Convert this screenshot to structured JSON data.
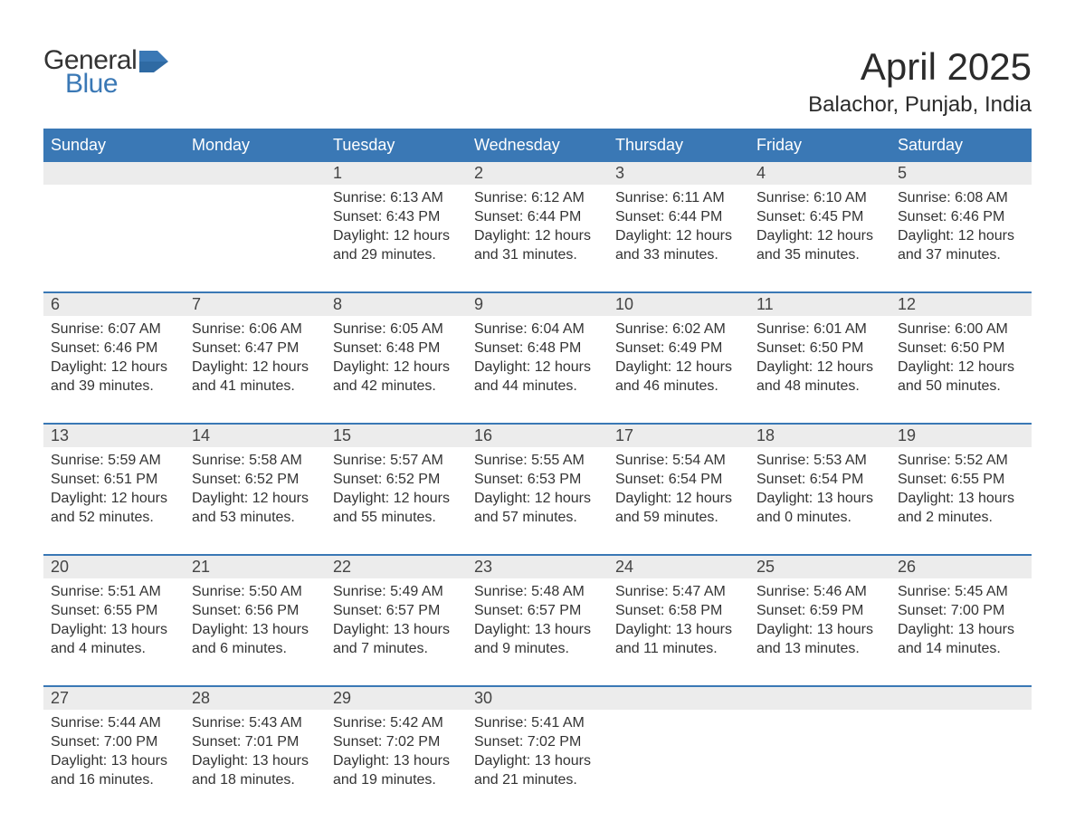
{
  "logo": {
    "word1": "General",
    "word2": "Blue"
  },
  "title": "April 2025",
  "location": "Balachor, Punjab, India",
  "colors": {
    "header_bg": "#3a78b5",
    "header_text": "#ffffff",
    "band_bg": "#ececec",
    "week_border": "#3a78b5",
    "body_text": "#333333",
    "logo_blue": "#3a78b5",
    "page_bg": "#ffffff"
  },
  "typography": {
    "month_title_fontsize": 42,
    "location_fontsize": 24,
    "dow_fontsize": 18,
    "daynum_fontsize": 18,
    "body_fontsize": 16,
    "logo_fontsize": 30
  },
  "days_of_week": [
    "Sunday",
    "Monday",
    "Tuesday",
    "Wednesday",
    "Thursday",
    "Friday",
    "Saturday"
  ],
  "weeks": [
    [
      null,
      null,
      {
        "n": "1",
        "sr": "Sunrise: 6:13 AM",
        "ss": "Sunset: 6:43 PM",
        "d1": "Daylight: 12 hours",
        "d2": "and 29 minutes."
      },
      {
        "n": "2",
        "sr": "Sunrise: 6:12 AM",
        "ss": "Sunset: 6:44 PM",
        "d1": "Daylight: 12 hours",
        "d2": "and 31 minutes."
      },
      {
        "n": "3",
        "sr": "Sunrise: 6:11 AM",
        "ss": "Sunset: 6:44 PM",
        "d1": "Daylight: 12 hours",
        "d2": "and 33 minutes."
      },
      {
        "n": "4",
        "sr": "Sunrise: 6:10 AM",
        "ss": "Sunset: 6:45 PM",
        "d1": "Daylight: 12 hours",
        "d2": "and 35 minutes."
      },
      {
        "n": "5",
        "sr": "Sunrise: 6:08 AM",
        "ss": "Sunset: 6:46 PM",
        "d1": "Daylight: 12 hours",
        "d2": "and 37 minutes."
      }
    ],
    [
      {
        "n": "6",
        "sr": "Sunrise: 6:07 AM",
        "ss": "Sunset: 6:46 PM",
        "d1": "Daylight: 12 hours",
        "d2": "and 39 minutes."
      },
      {
        "n": "7",
        "sr": "Sunrise: 6:06 AM",
        "ss": "Sunset: 6:47 PM",
        "d1": "Daylight: 12 hours",
        "d2": "and 41 minutes."
      },
      {
        "n": "8",
        "sr": "Sunrise: 6:05 AM",
        "ss": "Sunset: 6:48 PM",
        "d1": "Daylight: 12 hours",
        "d2": "and 42 minutes."
      },
      {
        "n": "9",
        "sr": "Sunrise: 6:04 AM",
        "ss": "Sunset: 6:48 PM",
        "d1": "Daylight: 12 hours",
        "d2": "and 44 minutes."
      },
      {
        "n": "10",
        "sr": "Sunrise: 6:02 AM",
        "ss": "Sunset: 6:49 PM",
        "d1": "Daylight: 12 hours",
        "d2": "and 46 minutes."
      },
      {
        "n": "11",
        "sr": "Sunrise: 6:01 AM",
        "ss": "Sunset: 6:50 PM",
        "d1": "Daylight: 12 hours",
        "d2": "and 48 minutes."
      },
      {
        "n": "12",
        "sr": "Sunrise: 6:00 AM",
        "ss": "Sunset: 6:50 PM",
        "d1": "Daylight: 12 hours",
        "d2": "and 50 minutes."
      }
    ],
    [
      {
        "n": "13",
        "sr": "Sunrise: 5:59 AM",
        "ss": "Sunset: 6:51 PM",
        "d1": "Daylight: 12 hours",
        "d2": "and 52 minutes."
      },
      {
        "n": "14",
        "sr": "Sunrise: 5:58 AM",
        "ss": "Sunset: 6:52 PM",
        "d1": "Daylight: 12 hours",
        "d2": "and 53 minutes."
      },
      {
        "n": "15",
        "sr": "Sunrise: 5:57 AM",
        "ss": "Sunset: 6:52 PM",
        "d1": "Daylight: 12 hours",
        "d2": "and 55 minutes."
      },
      {
        "n": "16",
        "sr": "Sunrise: 5:55 AM",
        "ss": "Sunset: 6:53 PM",
        "d1": "Daylight: 12 hours",
        "d2": "and 57 minutes."
      },
      {
        "n": "17",
        "sr": "Sunrise: 5:54 AM",
        "ss": "Sunset: 6:54 PM",
        "d1": "Daylight: 12 hours",
        "d2": "and 59 minutes."
      },
      {
        "n": "18",
        "sr": "Sunrise: 5:53 AM",
        "ss": "Sunset: 6:54 PM",
        "d1": "Daylight: 13 hours",
        "d2": "and 0 minutes."
      },
      {
        "n": "19",
        "sr": "Sunrise: 5:52 AM",
        "ss": "Sunset: 6:55 PM",
        "d1": "Daylight: 13 hours",
        "d2": "and 2 minutes."
      }
    ],
    [
      {
        "n": "20",
        "sr": "Sunrise: 5:51 AM",
        "ss": "Sunset: 6:55 PM",
        "d1": "Daylight: 13 hours",
        "d2": "and 4 minutes."
      },
      {
        "n": "21",
        "sr": "Sunrise: 5:50 AM",
        "ss": "Sunset: 6:56 PM",
        "d1": "Daylight: 13 hours",
        "d2": "and 6 minutes."
      },
      {
        "n": "22",
        "sr": "Sunrise: 5:49 AM",
        "ss": "Sunset: 6:57 PM",
        "d1": "Daylight: 13 hours",
        "d2": "and 7 minutes."
      },
      {
        "n": "23",
        "sr": "Sunrise: 5:48 AM",
        "ss": "Sunset: 6:57 PM",
        "d1": "Daylight: 13 hours",
        "d2": "and 9 minutes."
      },
      {
        "n": "24",
        "sr": "Sunrise: 5:47 AM",
        "ss": "Sunset: 6:58 PM",
        "d1": "Daylight: 13 hours",
        "d2": "and 11 minutes."
      },
      {
        "n": "25",
        "sr": "Sunrise: 5:46 AM",
        "ss": "Sunset: 6:59 PM",
        "d1": "Daylight: 13 hours",
        "d2": "and 13 minutes."
      },
      {
        "n": "26",
        "sr": "Sunrise: 5:45 AM",
        "ss": "Sunset: 7:00 PM",
        "d1": "Daylight: 13 hours",
        "d2": "and 14 minutes."
      }
    ],
    [
      {
        "n": "27",
        "sr": "Sunrise: 5:44 AM",
        "ss": "Sunset: 7:00 PM",
        "d1": "Daylight: 13 hours",
        "d2": "and 16 minutes."
      },
      {
        "n": "28",
        "sr": "Sunrise: 5:43 AM",
        "ss": "Sunset: 7:01 PM",
        "d1": "Daylight: 13 hours",
        "d2": "and 18 minutes."
      },
      {
        "n": "29",
        "sr": "Sunrise: 5:42 AM",
        "ss": "Sunset: 7:02 PM",
        "d1": "Daylight: 13 hours",
        "d2": "and 19 minutes."
      },
      {
        "n": "30",
        "sr": "Sunrise: 5:41 AM",
        "ss": "Sunset: 7:02 PM",
        "d1": "Daylight: 13 hours",
        "d2": "and 21 minutes."
      },
      null,
      null,
      null
    ]
  ]
}
